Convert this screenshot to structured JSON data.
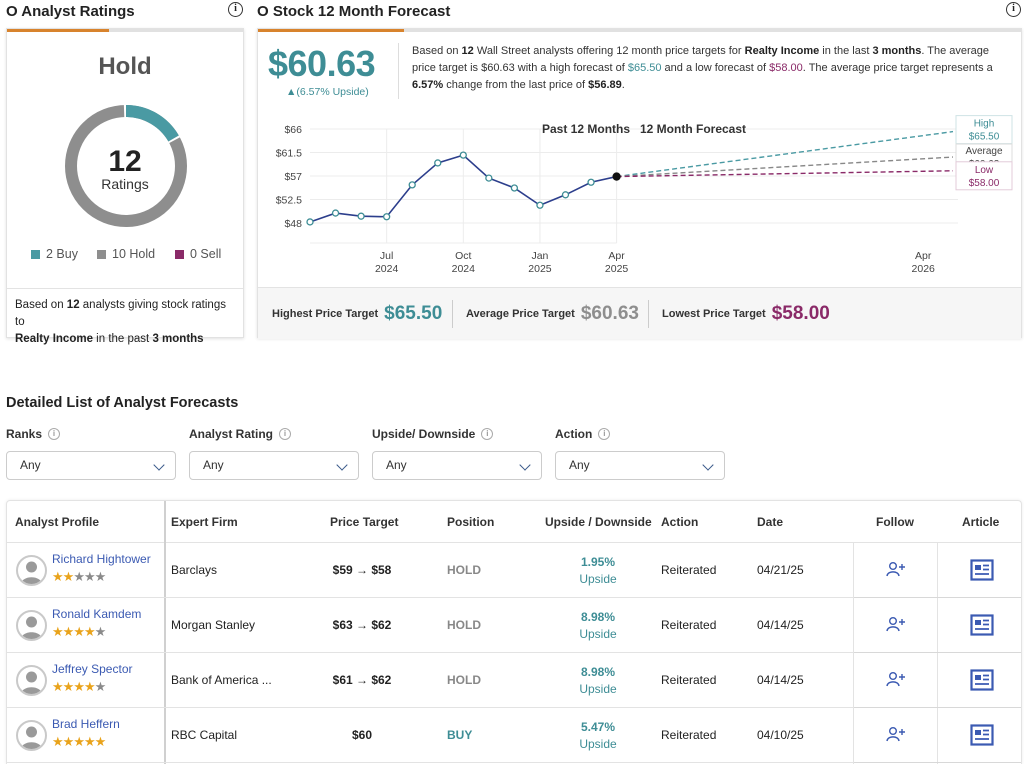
{
  "ratings": {
    "title": "O Analyst Ratings",
    "consensus": "Hold",
    "count": "12",
    "count_label": "Ratings",
    "buy": {
      "label": "2 Buy",
      "value": 2,
      "color": "#4a9aa3"
    },
    "hold": {
      "label": "10 Hold",
      "value": 10,
      "color": "#8e8e8e"
    },
    "sell": {
      "label": "0 Sell",
      "value": 0,
      "color": "#8a2a68"
    },
    "footer_pre": "Based on ",
    "footer_count": "12",
    "footer_mid": " analysts giving stock ratings to ",
    "footer_company": "Realty Income",
    "footer_mid2": " in the past ",
    "footer_period": "3 months"
  },
  "forecast": {
    "title": "O Stock 12 Month Forecast",
    "avg_price": "$60.63",
    "upside": "▲(6.57% Upside)",
    "summary": {
      "s1": "Based on ",
      "n": "12",
      "s2": " Wall Street analysts offering 12 month price targets for ",
      "company": "Realty Income",
      "s3": " in the last ",
      "period": "3 months",
      "s4": ". The average price target is $60.63 with a high forecast of ",
      "high": "$65.50",
      "s5": " and a low forecast of ",
      "low": "$58.00",
      "s6": ". The average price target represents a ",
      "pct": "6.57%",
      "s7": " change from the last price of ",
      "last": "$56.89",
      "s8": "."
    },
    "chart_labels": {
      "past": "Past 12 Months",
      "future": "12 Month Forecast",
      "high_word": "High",
      "high_val": "$65.50",
      "avg_word": "Average",
      "avg_val": "$60.63",
      "low_word": "Low",
      "low_val": "$58.00"
    },
    "price_targets": {
      "highest_label": "Highest Price Target",
      "highest": "$65.50",
      "average_label": "Average Price Target",
      "average": "$60.63",
      "lowest_label": "Lowest Price Target",
      "lowest": "$58.00"
    }
  },
  "chart_data": {
    "type": "line",
    "y_ticks": [
      "$66",
      "$61.5",
      "$57",
      "$52.5",
      "$48"
    ],
    "ylim": [
      48,
      66
    ],
    "x_ticks": [
      {
        "m": "Jul",
        "y": "2024",
        "t": 3
      },
      {
        "m": "Oct",
        "y": "2024",
        "t": 6
      },
      {
        "m": "Jan",
        "y": "2025",
        "t": 9
      },
      {
        "m": "Apr",
        "y": "2025",
        "t": 12
      },
      {
        "m": "Apr",
        "y": "2026",
        "t": 24
      }
    ],
    "history": {
      "x": [
        0,
        1,
        2,
        3,
        4,
        5,
        6,
        7,
        8,
        9,
        10,
        11,
        12
      ],
      "y": [
        48.2,
        49.9,
        49.3,
        49.2,
        55.3,
        59.5,
        61.0,
        56.6,
        54.7,
        51.4,
        53.4,
        55.8,
        56.89
      ]
    },
    "forecast": [
      {
        "name": "High",
        "start": 56.89,
        "end": 65.5,
        "color": "#4a9aa3"
      },
      {
        "name": "Average",
        "start": 56.89,
        "end": 60.63,
        "color": "#888888"
      },
      {
        "name": "Low",
        "start": 56.89,
        "end": 58.0,
        "color": "#8a2a68"
      }
    ]
  },
  "detail": {
    "title": "Detailed List of Analyst Forecasts",
    "filters": [
      {
        "label": "Ranks",
        "value": "Any"
      },
      {
        "label": "Analyst Rating",
        "value": "Any"
      },
      {
        "label": "Upside/ Downside",
        "value": "Any"
      },
      {
        "label": "Action",
        "value": "Any"
      }
    ],
    "columns": [
      "Analyst Profile",
      "Expert Firm",
      "Price Target",
      "Position",
      "Upside / Downside",
      "Action",
      "Date",
      "Follow",
      "Article"
    ],
    "rows": [
      {
        "name": "Richard Hightower",
        "stars": 2,
        "firm": "Barclays",
        "target": "$59 → $58",
        "position": "HOLD",
        "upside": "1.95%",
        "upside_word": "Upside",
        "action": "Reiterated",
        "date": "04/21/25"
      },
      {
        "name": "Ronald Kamdem",
        "stars": 4,
        "firm": "Morgan Stanley",
        "target": "$63 → $62",
        "position": "HOLD",
        "upside": "8.98%",
        "upside_word": "Upside",
        "action": "Reiterated",
        "date": "04/14/25"
      },
      {
        "name": "Jeffrey Spector",
        "stars": 4,
        "firm": "Bank of America ...",
        "target": "$61 → $62",
        "position": "HOLD",
        "upside": "8.98%",
        "upside_word": "Upside",
        "action": "Reiterated",
        "date": "04/14/25"
      },
      {
        "name": "Brad Heffern",
        "stars": 5,
        "firm": "RBC Capital",
        "target": "$60",
        "position": "BUY",
        "upside": "5.47%",
        "upside_word": "Upside",
        "action": "Reiterated",
        "date": "04/10/25"
      }
    ]
  }
}
